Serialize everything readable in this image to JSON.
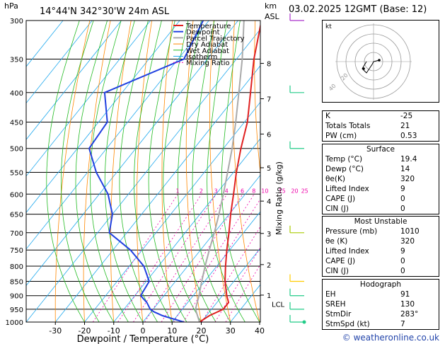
{
  "header": {
    "location": "14°44'N  342°30'W  24m  ASL",
    "hpa_unit": "hPa",
    "km_unit": "km",
    "asl_unit": "ASL",
    "date": "03.02.2025  12GMT  (Base: 12)"
  },
  "legend": [
    "Temperature",
    "Dewpoint",
    "Parcel Trajectory",
    "Dry Adiabat",
    "Wet Adiabat",
    "Isotherm",
    "Mixing Ratio"
  ],
  "chart_data": {
    "type": "line",
    "xlabel": "Dewpoint / Temperature (°C)",
    "ylabel": "Mixing Ratio (g/kg)",
    "x_ticks": [
      -30,
      -20,
      -10,
      0,
      10,
      20,
      30,
      40
    ],
    "pressure_levels": [
      300,
      350,
      400,
      450,
      500,
      550,
      600,
      650,
      700,
      750,
      800,
      850,
      900,
      950,
      1000
    ],
    "km_ticks": [
      "1",
      "2",
      "3",
      "4",
      "5",
      "6",
      "7",
      "8"
    ],
    "lcl_label": "LCL",
    "mixing_ratio_labels": [
      "1",
      "2",
      "3",
      "4",
      "6",
      "8",
      "10",
      "15",
      "20",
      "25"
    ],
    "series": [
      {
        "name": "Temperature",
        "color": "#e02020",
        "pressure": [
          1000,
          975,
          950,
          925,
          900,
          850,
          800,
          750,
          700,
          650,
          600,
          550,
          500,
          450,
          400,
          350,
          300
        ],
        "values": [
          19.4,
          21,
          24,
          24,
          21.5,
          17,
          13,
          9,
          5,
          0.5,
          -4,
          -9,
          -14,
          -19,
          -26,
          -34,
          -42
        ]
      },
      {
        "name": "Dewpoint",
        "color": "#2040e0",
        "pressure": [
          1000,
          975,
          960,
          950,
          925,
          900,
          850,
          800,
          750,
          700,
          650,
          600,
          550,
          500,
          450,
          400,
          350,
          300
        ],
        "values": [
          14,
          5,
          1,
          -1,
          -4,
          -8,
          -9,
          -15,
          -24,
          -36,
          -40,
          -47,
          -57,
          -66,
          -67,
          -76,
          -58,
          -62
        ]
      },
      {
        "name": "Parcel Trajectory",
        "color": "#aaaaaa",
        "pressure": [
          1000,
          950,
          900,
          850,
          800,
          750,
          700,
          650,
          600,
          550,
          500,
          450,
          400,
          350,
          300
        ],
        "values": [
          19.4,
          14.5,
          12,
          9,
          6,
          3,
          0,
          -3.5,
          -7.5,
          -12,
          -17,
          -23,
          -30,
          -38,
          -48
        ]
      }
    ]
  },
  "hodograph": {
    "kt_label": "kt",
    "ring_labels": [
      "40",
      "20"
    ]
  },
  "indices": [
    {
      "label": "K",
      "value": "-25"
    },
    {
      "label": "Totals Totals",
      "value": "21"
    },
    {
      "label": "PW (cm)",
      "value": "0.53"
    }
  ],
  "surface": {
    "title": "Surface",
    "rows": [
      {
        "label": "Temp (°C)",
        "value": "19.4"
      },
      {
        "label": "Dewp (°C)",
        "value": "14"
      },
      {
        "label": "θe(K)",
        "value": "320"
      },
      {
        "label": "Lifted Index",
        "value": "9"
      },
      {
        "label": "CAPE (J)",
        "value": "0"
      },
      {
        "label": "CIN (J)",
        "value": "0"
      }
    ]
  },
  "unstable": {
    "title": "Most Unstable",
    "rows": [
      {
        "label": "Pressure (mb)",
        "value": "1010"
      },
      {
        "label": "θe (K)",
        "value": "320"
      },
      {
        "label": "Lifted Index",
        "value": "9"
      },
      {
        "label": "CAPE (J)",
        "value": "0"
      },
      {
        "label": "CIN (J)",
        "value": "0"
      }
    ]
  },
  "hodo_table": {
    "title": "Hodograph",
    "rows": [
      {
        "label": "EH",
        "value": "91"
      },
      {
        "label": "SREH",
        "value": "130"
      },
      {
        "label": "StmDir",
        "value": "283°"
      },
      {
        "label": "StmSpd (kt)",
        "value": "7"
      }
    ]
  },
  "copyright": "© weatheronline.co.uk"
}
